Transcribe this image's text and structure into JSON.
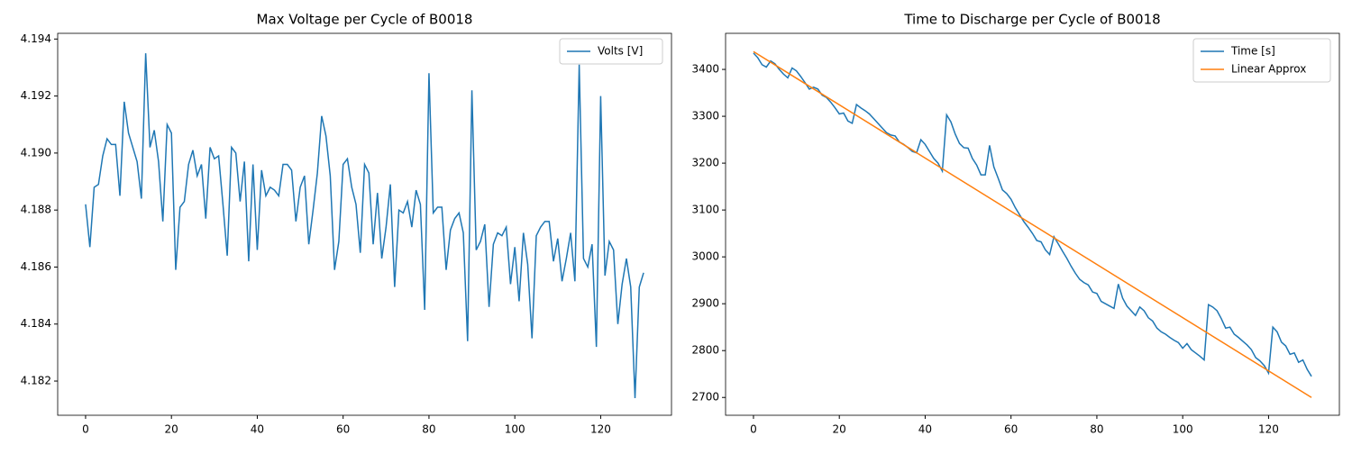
{
  "chart_data": [
    {
      "type": "line",
      "title": "Max Voltage per Cycle of B0018",
      "x": [
        0,
        1,
        2,
        3,
        4,
        5,
        6,
        7,
        8,
        9,
        10,
        11,
        12,
        13,
        14,
        15,
        16,
        17,
        18,
        19,
        20,
        21,
        22,
        23,
        24,
        25,
        26,
        27,
        28,
        29,
        30,
        31,
        32,
        33,
        34,
        35,
        36,
        37,
        38,
        39,
        40,
        41,
        42,
        43,
        44,
        45,
        46,
        47,
        48,
        49,
        50,
        51,
        52,
        53,
        54,
        55,
        56,
        57,
        58,
        59,
        60,
        61,
        62,
        63,
        64,
        65,
        66,
        67,
        68,
        69,
        70,
        71,
        72,
        73,
        74,
        75,
        76,
        77,
        78,
        79,
        80,
        81,
        82,
        83,
        84,
        85,
        86,
        87,
        88,
        89,
        90,
        91,
        92,
        93,
        94,
        95,
        96,
        97,
        98,
        99,
        100,
        101,
        102,
        103,
        104,
        105,
        106,
        107,
        108,
        109,
        110,
        111,
        112,
        113,
        114,
        115,
        116,
        117,
        118,
        119,
        120,
        121,
        122,
        123,
        124,
        125,
        126,
        127,
        128,
        129,
        130
      ],
      "series": [
        {
          "name": "Volts [V]",
          "color": "#1f77b4",
          "values": [
            4.1882,
            4.1867,
            4.1888,
            4.1889,
            4.1899,
            4.1905,
            4.1903,
            4.1903,
            4.1885,
            4.1918,
            4.1907,
            4.1902,
            4.1897,
            4.1884,
            4.1935,
            4.1902,
            4.1908,
            4.1897,
            4.1876,
            4.191,
            4.1907,
            4.1859,
            4.1881,
            4.1883,
            4.1896,
            4.1901,
            4.1892,
            4.1896,
            4.1877,
            4.1902,
            4.1898,
            4.1899,
            4.1882,
            4.1864,
            4.1902,
            4.19,
            4.1883,
            4.1897,
            4.1862,
            4.1896,
            4.1866,
            4.1894,
            4.1885,
            4.1888,
            4.1887,
            4.1885,
            4.1896,
            4.1896,
            4.1894,
            4.1876,
            4.1888,
            4.1892,
            4.1868,
            4.188,
            4.1893,
            4.1913,
            4.1906,
            4.1892,
            4.1859,
            4.1869,
            4.1896,
            4.1898,
            4.1888,
            4.1882,
            4.1865,
            4.1896,
            4.1893,
            4.1868,
            4.1886,
            4.1863,
            4.1874,
            4.1889,
            4.1853,
            4.188,
            4.1879,
            4.1883,
            4.1874,
            4.1887,
            4.1882,
            4.1845,
            4.1928,
            4.1879,
            4.1881,
            4.1881,
            4.1859,
            4.1873,
            4.1877,
            4.1879,
            4.1872,
            4.1834,
            4.1922,
            4.1866,
            4.1869,
            4.1875,
            4.1846,
            4.1868,
            4.1872,
            4.1871,
            4.1874,
            4.1854,
            4.1867,
            4.1848,
            4.1872,
            4.1861,
            4.1835,
            4.1871,
            4.1874,
            4.1876,
            4.1876,
            4.1862,
            4.187,
            4.1855,
            4.1863,
            4.1872,
            4.1855,
            4.1931,
            4.1863,
            4.186,
            4.1868,
            4.1832,
            4.192,
            4.1857,
            4.1869,
            4.1866,
            4.184,
            4.1854,
            4.1863,
            4.1853,
            4.1814,
            4.1853,
            4.1858
          ]
        }
      ],
      "xlim": [
        -6.5,
        136.5
      ],
      "xticks": [
        0,
        20,
        40,
        60,
        80,
        100,
        120
      ],
      "ylim": [
        4.1808,
        4.1942
      ],
      "yticks": [
        4.182,
        4.184,
        4.186,
        4.188,
        {
          "value": 4.19,
          "label": "4.190"
        },
        4.192,
        4.194
      ],
      "legend": "upper right"
    },
    {
      "type": "line",
      "title": "Time to Discharge per Cycle of B0018",
      "x": [
        0,
        1,
        2,
        3,
        4,
        5,
        6,
        7,
        8,
        9,
        10,
        11,
        12,
        13,
        14,
        15,
        16,
        17,
        18,
        19,
        20,
        21,
        22,
        23,
        24,
        25,
        26,
        27,
        28,
        29,
        30,
        31,
        32,
        33,
        34,
        35,
        36,
        37,
        38,
        39,
        40,
        41,
        42,
        43,
        44,
        45,
        46,
        47,
        48,
        49,
        50,
        51,
        52,
        53,
        54,
        55,
        56,
        57,
        58,
        59,
        60,
        61,
        62,
        63,
        64,
        65,
        66,
        67,
        68,
        69,
        70,
        71,
        72,
        73,
        74,
        75,
        76,
        77,
        78,
        79,
        80,
        81,
        82,
        83,
        84,
        85,
        86,
        87,
        88,
        89,
        90,
        91,
        92,
        93,
        94,
        95,
        96,
        97,
        98,
        99,
        100,
        101,
        102,
        103,
        104,
        105,
        106,
        107,
        108,
        109,
        110,
        111,
        112,
        113,
        114,
        115,
        116,
        117,
        118,
        119,
        120,
        121,
        122,
        123,
        124,
        125,
        126,
        127,
        128,
        129,
        130
      ],
      "series": [
        {
          "name": "Time [s]",
          "color": "#1f77b4",
          "values": [
            3435,
            3425,
            3410,
            3405,
            3418,
            3412,
            3400,
            3390,
            3382,
            3403,
            3397,
            3385,
            3372,
            3358,
            3362,
            3358,
            3345,
            3340,
            3330,
            3318,
            3305,
            3307,
            3290,
            3285,
            3325,
            3318,
            3312,
            3305,
            3295,
            3285,
            3275,
            3265,
            3260,
            3258,
            3245,
            3240,
            3233,
            3225,
            3222,
            3250,
            3240,
            3225,
            3210,
            3200,
            3183,
            3303,
            3288,
            3262,
            3242,
            3233,
            3232,
            3210,
            3196,
            3175,
            3175,
            3238,
            3192,
            3168,
            3143,
            3135,
            3123,
            3105,
            3090,
            3075,
            3063,
            3050,
            3035,
            3032,
            3015,
            3005,
            3043,
            3028,
            3012,
            2997,
            2980,
            2965,
            2952,
            2945,
            2940,
            2925,
            2922,
            2905,
            2900,
            2895,
            2890,
            2942,
            2912,
            2895,
            2885,
            2875,
            2893,
            2885,
            2870,
            2863,
            2848,
            2840,
            2835,
            2828,
            2822,
            2817,
            2805,
            2815,
            2802,
            2795,
            2788,
            2780,
            2898,
            2893,
            2885,
            2868,
            2848,
            2850,
            2835,
            2828,
            2820,
            2812,
            2802,
            2785,
            2778,
            2768,
            2752,
            2850,
            2840,
            2818,
            2810,
            2792,
            2795,
            2775,
            2780,
            2760,
            2745
          ]
        },
        {
          "name": "Linear Approx",
          "color": "#ff7f0e",
          "x": [
            0,
            130
          ],
          "values": [
            3438,
            2700
          ]
        }
      ],
      "xlim": [
        -6.5,
        136.5
      ],
      "xticks": [
        0,
        20,
        40,
        60,
        80,
        100,
        120
      ],
      "ylim": [
        2662,
        3477
      ],
      "yticks": [
        2700,
        2800,
        2900,
        3000,
        3100,
        3200,
        3300,
        3400
      ],
      "legend": "upper right"
    }
  ]
}
